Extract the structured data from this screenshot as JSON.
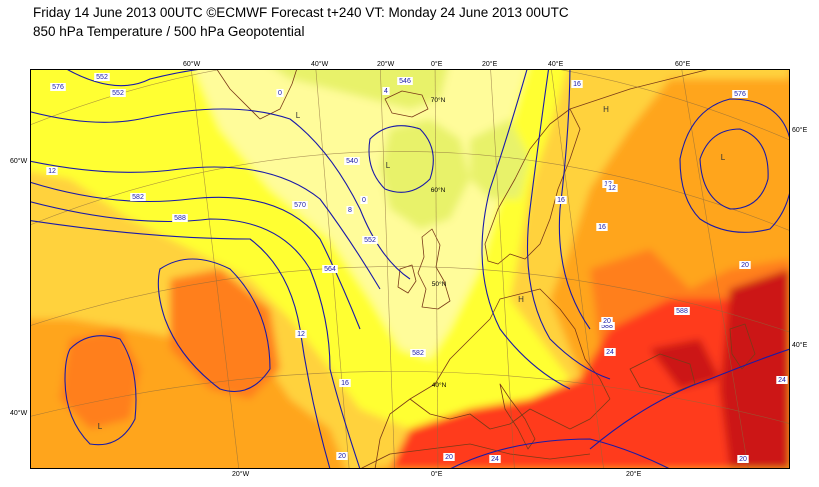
{
  "header": {
    "line1": "Friday 14 June 2013 00UTC ©ECMWF Forecast t+240 VT: Monday 24 June 2013 00UTC",
    "line2": "850 hPa Temperature / 500 hPa Geopotential"
  },
  "colors": {
    "cold_yellowgreen": "#e8f26a",
    "pale_yellow": "#fffc9a",
    "yellow": "#ffff33",
    "light_orange": "#ffd23c",
    "orange": "#ffa51f",
    "dark_orange": "#ff7f1e",
    "red": "#ff3b1a",
    "deep_red": "#cc1414",
    "contour": "#1a1aa8",
    "coast": "#7a3a18",
    "graticule": "#8a6a3c"
  },
  "map": {
    "top_lon_labels": [
      "60°W",
      "40°W",
      "20°W",
      "0°E",
      "20°E",
      "40°E",
      "60°E"
    ],
    "bottom_lon_labels": [
      "20°W",
      "0°E",
      "20°E"
    ],
    "left_lat_labels": [
      "60°W",
      "40°W"
    ],
    "right_lat_labels": [
      "60°E",
      "40°E"
    ],
    "inner_lat_labels": [
      "70°N",
      "60°N",
      "50°N",
      "40°N"
    ],
    "geopotential_labels": [
      "552",
      "546",
      "552",
      "576",
      "582",
      "588",
      "570",
      "540",
      "552",
      "564",
      "582",
      "588",
      "576",
      "588"
    ],
    "temperature_labels": [
      "0",
      "4",
      "12",
      "0",
      "8",
      "12",
      "16",
      "20",
      "16",
      "12",
      "16",
      "12",
      "16",
      "20",
      "24",
      "20",
      "20",
      "24",
      "24",
      "20"
    ],
    "pressure_centres": [
      "L",
      "L",
      "H",
      "L",
      "H",
      "L"
    ]
  }
}
